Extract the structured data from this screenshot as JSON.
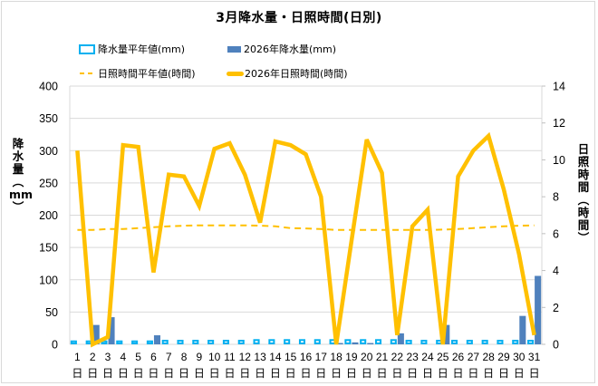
{
  "title": "3月降水量・日照時間(日別)",
  "legend": {
    "precip_normal": "降水量平年値(mm)",
    "precip_2026": "2026年降水量(mm)",
    "sun_normal": "日照時間平年値(時間)",
    "sun_2026": "2026年日照時間(時間)"
  },
  "axes": {
    "left_title": [
      "降",
      "水",
      "量",
      "︵",
      "mm",
      "︶"
    ],
    "right_title": [
      "日",
      "照",
      "時",
      "間",
      "︵",
      "時",
      "間",
      "︶"
    ],
    "left_ticks": [
      "0",
      "50",
      "100",
      "150",
      "200",
      "250",
      "300",
      "350",
      "400"
    ],
    "right_ticks": [
      "0",
      "2",
      "4",
      "6",
      "8",
      "10",
      "12",
      "14"
    ],
    "x_day_suffix": "日"
  },
  "colors": {
    "precip_normal": "#00b0f0",
    "precip_2026": "#4f81bd",
    "sun_normal": "#ffc000",
    "sun_2026": "#ffc000",
    "grid": "#d9d9d9",
    "border": "#d9d9d9"
  },
  "chart_data": {
    "type": "bar+line",
    "title": "3月降水量・日照時間(日別)",
    "categories": [
      "1",
      "2",
      "3",
      "4",
      "5",
      "6",
      "7",
      "8",
      "9",
      "10",
      "11",
      "12",
      "13",
      "14",
      "15",
      "16",
      "17",
      "18",
      "19",
      "20",
      "21",
      "22",
      "23",
      "24",
      "25",
      "26",
      "27",
      "28",
      "29",
      "30",
      "31"
    ],
    "xlabel": "日",
    "ylabel_left": "降水量(mm)",
    "ylabel_right": "日照時間(時間)",
    "ylim_left": [
      0,
      400
    ],
    "ylim_right": [
      0,
      14
    ],
    "grid": true,
    "legend_position": "top",
    "series": [
      {
        "name": "降水量平年値(mm)",
        "type": "bar",
        "axis": "left",
        "values": [
          6,
          6,
          6,
          6,
          6,
          6,
          7,
          7,
          7,
          7,
          7,
          7,
          8,
          8,
          8,
          8,
          8,
          8,
          8,
          8,
          8,
          8,
          7,
          7,
          7,
          7,
          7,
          7,
          7,
          7,
          7
        ]
      },
      {
        "name": "2026年降水量(mm)",
        "type": "bar",
        "axis": "left",
        "values": [
          0,
          30,
          42,
          0,
          0,
          14,
          0,
          0,
          0,
          0,
          0,
          0,
          0,
          0,
          0,
          0,
          0,
          2,
          3,
          2,
          0,
          17,
          0,
          0,
          30,
          0,
          0,
          0,
          0,
          44,
          106
        ]
      },
      {
        "name": "日照時間平年値(時間)",
        "type": "line-dashed",
        "axis": "right",
        "values": [
          6.2,
          6.2,
          6.25,
          6.25,
          6.3,
          6.35,
          6.4,
          6.43,
          6.45,
          6.45,
          6.45,
          6.45,
          6.43,
          6.4,
          6.3,
          6.28,
          6.25,
          6.2,
          6.2,
          6.2,
          6.2,
          6.2,
          6.2,
          6.2,
          6.22,
          6.25,
          6.3,
          6.35,
          6.4,
          6.43,
          6.45
        ]
      },
      {
        "name": "2026年日照時間(時間)",
        "type": "line",
        "axis": "right",
        "values": [
          10.5,
          0.0,
          0.4,
          10.8,
          10.7,
          3.9,
          9.2,
          9.1,
          7.5,
          10.6,
          10.9,
          9.2,
          6.6,
          11.0,
          10.8,
          10.3,
          8.0,
          0.0,
          5.6,
          11.1,
          9.3,
          0.5,
          6.4,
          7.3,
          0.0,
          9.1,
          10.5,
          11.3,
          8.4,
          4.9,
          0.5
        ]
      }
    ]
  }
}
